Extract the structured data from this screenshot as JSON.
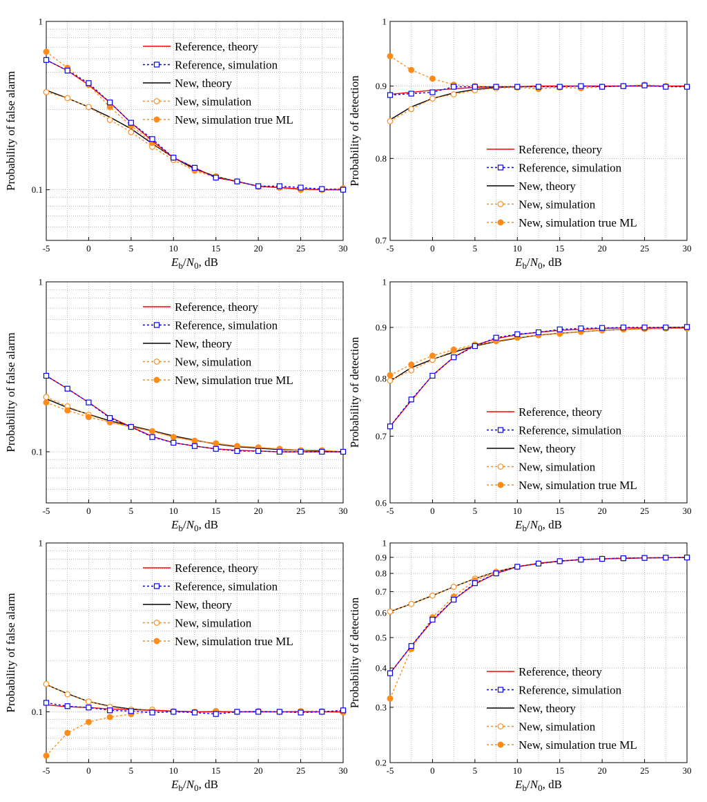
{
  "colors": {
    "ref_theory": "#ff0000",
    "ref_sim": "#0000ff",
    "new_theory": "#000000",
    "new_sim": "#ff8c1a",
    "grid": "#8c8c8c"
  },
  "chart_data": [
    {
      "type": "line",
      "yscale": "log",
      "xlabel": "E_b/N_0, dB",
      "ylabel": "Probability of false alarm",
      "x": [
        -5,
        -2.5,
        0,
        2.5,
        5,
        7.5,
        10,
        12.5,
        15,
        17.5,
        20,
        22.5,
        25,
        27.5,
        30
      ],
      "xlim": [
        -5,
        30
      ],
      "xticks": [
        -5,
        0,
        5,
        10,
        15,
        20,
        25,
        30
      ],
      "ylim": [
        0.05,
        1
      ],
      "yticks": [
        {
          "v": 0.1,
          "label": "0.1"
        },
        {
          "v": 1,
          "label": "1"
        }
      ],
      "legend_position": "top-right",
      "series": [
        {
          "name": "Reference, theory",
          "style": "ref_theory",
          "values": [
            0.59,
            0.51,
            0.42,
            0.33,
            0.25,
            0.195,
            0.155,
            0.135,
            0.118,
            0.112,
            0.105,
            0.103,
            0.101,
            0.1,
            0.1
          ]
        },
        {
          "name": "Reference, simulation",
          "style": "ref_sim",
          "values": [
            0.59,
            0.51,
            0.43,
            0.33,
            0.25,
            0.2,
            0.155,
            0.135,
            0.118,
            0.112,
            0.105,
            0.105,
            0.103,
            0.101,
            0.1
          ]
        },
        {
          "name": "New, theory",
          "style": "new_theory",
          "values": [
            0.39,
            0.35,
            0.31,
            0.27,
            0.23,
            0.188,
            0.155,
            0.133,
            0.12,
            0.112,
            0.105,
            0.103,
            0.101,
            0.1,
            0.1
          ]
        },
        {
          "name": "New, simulation",
          "style": "new_sim",
          "values": [
            0.38,
            0.35,
            0.31,
            0.26,
            0.22,
            0.18,
            0.15,
            0.13,
            0.118,
            0.112,
            0.105,
            0.103,
            0.101,
            0.1,
            0.102
          ]
        },
        {
          "name": "New, simulation true ML",
          "style": "new_ml",
          "values": [
            0.66,
            0.53,
            0.42,
            0.31,
            0.24,
            0.19,
            0.155,
            0.13,
            0.12,
            0.112,
            0.104,
            0.103,
            0.1,
            0.1,
            0.102
          ]
        }
      ]
    },
    {
      "type": "line",
      "yscale": "log",
      "xlabel": "E_b/N_0, dB",
      "ylabel": "Probability of detection",
      "x": [
        -5,
        -2.5,
        0,
        2.5,
        5,
        7.5,
        10,
        12.5,
        15,
        17.5,
        20,
        22.5,
        25,
        27.5,
        30
      ],
      "xlim": [
        -5,
        30
      ],
      "xticks": [
        -5,
        0,
        5,
        10,
        15,
        20,
        25,
        30
      ],
      "ylim": [
        0.7,
        1
      ],
      "yticks": [
        {
          "v": 0.7,
          "label": "0.7"
        },
        {
          "v": 0.8,
          "label": "0.8"
        },
        {
          "v": 0.9,
          "label": "0.9"
        },
        {
          "v": 1,
          "label": "1"
        }
      ],
      "legend_position": "bottom-right",
      "series": [
        {
          "name": "Reference, theory",
          "style": "ref_theory",
          "values": [
            0.888,
            0.891,
            0.894,
            0.896,
            0.898,
            0.899,
            0.899,
            0.9,
            0.9,
            0.9,
            0.9,
            0.9,
            0.9,
            0.9,
            0.9
          ]
        },
        {
          "name": "Reference, simulation",
          "style": "ref_sim",
          "values": [
            0.887,
            0.889,
            0.891,
            0.899,
            0.899,
            0.899,
            0.899,
            0.899,
            0.899,
            0.9,
            0.899,
            0.9,
            0.901,
            0.899,
            0.899
          ]
        },
        {
          "name": "New, theory",
          "style": "new_theory",
          "values": [
            0.852,
            0.87,
            0.882,
            0.89,
            0.895,
            0.898,
            0.899,
            0.9,
            0.9,
            0.9,
            0.9,
            0.9,
            0.9,
            0.9,
            0.9
          ]
        },
        {
          "name": "New, simulation",
          "style": "new_sim",
          "values": [
            0.85,
            0.867,
            0.882,
            0.888,
            0.894,
            0.897,
            0.898,
            0.897,
            0.898,
            0.897,
            0.899,
            0.9,
            0.901,
            0.9,
            0.899
          ]
        },
        {
          "name": "New, simulation true ML",
          "style": "new_ml",
          "values": [
            0.945,
            0.924,
            0.911,
            0.902,
            0.9,
            0.899,
            0.898,
            0.896,
            0.898,
            0.897,
            0.899,
            0.9,
            0.902,
            0.9,
            0.899
          ]
        }
      ]
    },
    {
      "type": "line",
      "yscale": "log",
      "xlabel": "E_b/N_0, dB",
      "ylabel": "Probability of false alarm",
      "x": [
        -5,
        -2.5,
        0,
        2.5,
        5,
        7.5,
        10,
        12.5,
        15,
        17.5,
        20,
        22.5,
        25,
        27.5,
        30
      ],
      "xlim": [
        -5,
        30
      ],
      "xticks": [
        -5,
        0,
        5,
        10,
        15,
        20,
        25,
        30
      ],
      "ylim": [
        0.05,
        1
      ],
      "yticks": [
        {
          "v": 0.1,
          "label": "0.1"
        },
        {
          "v": 1,
          "label": "1"
        }
      ],
      "legend_position": "top-right",
      "series": [
        {
          "name": "Reference, theory",
          "style": "ref_theory",
          "values": [
            0.28,
            0.235,
            0.195,
            0.16,
            0.14,
            0.123,
            0.113,
            0.108,
            0.104,
            0.102,
            0.101,
            0.1,
            0.1,
            0.1,
            0.1
          ]
        },
        {
          "name": "Reference, simulation",
          "style": "ref_sim",
          "values": [
            0.28,
            0.235,
            0.195,
            0.158,
            0.14,
            0.122,
            0.113,
            0.108,
            0.104,
            0.101,
            0.101,
            0.1,
            0.1,
            0.1,
            0.1
          ]
        },
        {
          "name": "New, theory",
          "style": "new_theory",
          "values": [
            0.205,
            0.182,
            0.166,
            0.152,
            0.142,
            0.133,
            0.124,
            0.117,
            0.111,
            0.107,
            0.105,
            0.103,
            0.102,
            0.101,
            0.1
          ]
        },
        {
          "name": "New, simulation",
          "style": "new_sim",
          "values": [
            0.21,
            0.185,
            0.165,
            0.15,
            0.14,
            0.132,
            0.122,
            0.116,
            0.112,
            0.108,
            0.106,
            0.104,
            0.102,
            0.102,
            0.1
          ]
        },
        {
          "name": "New, simulation true ML",
          "style": "new_ml",
          "values": [
            0.195,
            0.175,
            0.16,
            0.149,
            0.14,
            0.132,
            0.122,
            0.116,
            0.112,
            0.108,
            0.106,
            0.104,
            0.102,
            0.102,
            0.1
          ]
        }
      ]
    },
    {
      "type": "line",
      "yscale": "log",
      "xlabel": "E_b/N_0, dB",
      "ylabel": "Probability of detection",
      "x": [
        -5,
        -2.5,
        0,
        2.5,
        5,
        7.5,
        10,
        12.5,
        15,
        17.5,
        20,
        22.5,
        25,
        27.5,
        30
      ],
      "xlim": [
        -5,
        30
      ],
      "xticks": [
        -5,
        0,
        5,
        10,
        15,
        20,
        25,
        30
      ],
      "ylim": [
        0.6,
        1
      ],
      "yticks": [
        {
          "v": 0.6,
          "label": "0.6"
        },
        {
          "v": 0.7,
          "label": "0.7"
        },
        {
          "v": 0.8,
          "label": "0.8"
        },
        {
          "v": 0.9,
          "label": "0.9"
        },
        {
          "v": 1,
          "label": "1"
        }
      ],
      "legend_position": "bottom-right",
      "series": [
        {
          "name": "Reference, theory",
          "style": "ref_theory",
          "values": [
            0.716,
            0.76,
            0.806,
            0.84,
            0.864,
            0.877,
            0.885,
            0.89,
            0.894,
            0.896,
            0.898,
            0.899,
            0.899,
            0.9,
            0.9
          ]
        },
        {
          "name": "Reference, simulation",
          "style": "ref_sim",
          "values": [
            0.716,
            0.762,
            0.805,
            0.84,
            0.862,
            0.879,
            0.886,
            0.89,
            0.896,
            0.898,
            0.899,
            0.9,
            0.9,
            0.9,
            0.901
          ]
        },
        {
          "name": "New, theory",
          "style": "new_theory",
          "values": [
            0.795,
            0.82,
            0.836,
            0.85,
            0.862,
            0.871,
            0.878,
            0.884,
            0.888,
            0.891,
            0.894,
            0.896,
            0.897,
            0.898,
            0.899
          ]
        },
        {
          "name": "New, simulation",
          "style": "new_sim",
          "values": [
            0.796,
            0.815,
            0.835,
            0.853,
            0.863,
            0.872,
            0.879,
            0.885,
            0.888,
            0.891,
            0.894,
            0.896,
            0.897,
            0.898,
            0.898
          ]
        },
        {
          "name": "New, simulation true ML",
          "style": "new_ml",
          "values": [
            0.806,
            0.826,
            0.843,
            0.855,
            0.865,
            0.872,
            0.879,
            0.884,
            0.887,
            0.891,
            0.894,
            0.896,
            0.897,
            0.898,
            0.898
          ]
        }
      ]
    },
    {
      "type": "line",
      "yscale": "log",
      "xlabel": "E_b/N_0, dB",
      "ylabel": "Probability of false alarm",
      "x": [
        -5,
        -2.5,
        0,
        2.5,
        5,
        7.5,
        10,
        12.5,
        15,
        17.5,
        20,
        22.5,
        25,
        27.5,
        30
      ],
      "xlim": [
        -5,
        30
      ],
      "xticks": [
        -5,
        0,
        5,
        10,
        15,
        20,
        25,
        30
      ],
      "ylim": [
        0.05,
        1
      ],
      "yticks": [
        {
          "v": 0.1,
          "label": "0.1"
        },
        {
          "v": 1,
          "label": "1"
        }
      ],
      "legend_position": "top-right",
      "series": [
        {
          "name": "Reference, theory",
          "style": "ref_theory",
          "values": [
            0.11,
            0.107,
            0.106,
            0.104,
            0.103,
            0.102,
            0.101,
            0.1,
            0.1,
            0.1,
            0.1,
            0.1,
            0.1,
            0.1,
            0.1
          ]
        },
        {
          "name": "Reference, simulation",
          "style": "ref_sim",
          "values": [
            0.113,
            0.108,
            0.106,
            0.102,
            0.101,
            0.099,
            0.1,
            0.099,
            0.097,
            0.1,
            0.1,
            0.1,
            0.099,
            0.1,
            0.102
          ]
        },
        {
          "name": "New, theory",
          "style": "new_theory",
          "values": [
            0.145,
            0.128,
            0.115,
            0.108,
            0.104,
            0.102,
            0.101,
            0.1,
            0.1,
            0.1,
            0.1,
            0.1,
            0.1,
            0.1,
            0.1
          ]
        },
        {
          "name": "New, simulation",
          "style": "new_sim",
          "values": [
            0.146,
            0.127,
            0.115,
            0.107,
            0.103,
            0.103,
            0.101,
            0.1,
            0.101,
            0.1,
            0.101,
            0.1,
            0.101,
            0.101,
            0.1
          ]
        },
        {
          "name": "New, simulation true ML",
          "style": "new_ml",
          "values": [
            0.055,
            0.075,
            0.087,
            0.093,
            0.097,
            0.1,
            0.1,
            0.1,
            0.101,
            0.1,
            0.101,
            0.1,
            0.101,
            0.1,
            0.099
          ]
        }
      ]
    },
    {
      "type": "line",
      "yscale": "log",
      "xlabel": "E_b/N_0, dB",
      "ylabel": "Probability of detection",
      "x": [
        -5,
        -2.5,
        0,
        2.5,
        5,
        7.5,
        10,
        12.5,
        15,
        17.5,
        20,
        22.5,
        25,
        27.5,
        30
      ],
      "xlim": [
        -5,
        30
      ],
      "xticks": [
        -5,
        0,
        5,
        10,
        15,
        20,
        25,
        30
      ],
      "ylim": [
        0.2,
        1
      ],
      "yticks": [
        {
          "v": 0.2,
          "label": "0.2"
        },
        {
          "v": 0.3,
          "label": "0.3"
        },
        {
          "v": 0.4,
          "label": "0.4"
        },
        {
          "v": 0.5,
          "label": "0.5"
        },
        {
          "v": 0.6,
          "label": "0.6"
        },
        {
          "v": 0.7,
          "label": "0.7"
        },
        {
          "v": 0.8,
          "label": "0.8"
        },
        {
          "v": 0.9,
          "label": "0.9"
        },
        {
          "v": 1,
          "label": "1"
        }
      ],
      "legend_position": "bottom-right",
      "series": [
        {
          "name": "Reference, theory",
          "style": "ref_theory",
          "values": [
            0.385,
            0.47,
            0.565,
            0.66,
            0.74,
            0.8,
            0.84,
            0.862,
            0.876,
            0.885,
            0.89,
            0.893,
            0.896,
            0.898,
            0.899
          ]
        },
        {
          "name": "Reference, simulation",
          "style": "ref_sim",
          "values": [
            0.385,
            0.47,
            0.57,
            0.66,
            0.745,
            0.8,
            0.84,
            0.86,
            0.875,
            0.885,
            0.89,
            0.894,
            0.896,
            0.898,
            0.899
          ]
        },
        {
          "name": "New, theory",
          "style": "new_theory",
          "values": [
            0.605,
            0.64,
            0.68,
            0.725,
            0.77,
            0.81,
            0.84,
            0.86,
            0.875,
            0.885,
            0.89,
            0.894,
            0.896,
            0.898,
            0.899
          ]
        },
        {
          "name": "New, simulation",
          "style": "new_sim",
          "values": [
            0.605,
            0.64,
            0.68,
            0.725,
            0.77,
            0.81,
            0.84,
            0.86,
            0.875,
            0.885,
            0.89,
            0.894,
            0.896,
            0.898,
            0.899
          ]
        },
        {
          "name": "New, simulation true ML",
          "style": "new_ml",
          "values": [
            0.32,
            0.46,
            0.58,
            0.675,
            0.76,
            0.805,
            0.84,
            0.86,
            0.875,
            0.885,
            0.89,
            0.894,
            0.896,
            0.898,
            0.899
          ]
        }
      ]
    }
  ]
}
